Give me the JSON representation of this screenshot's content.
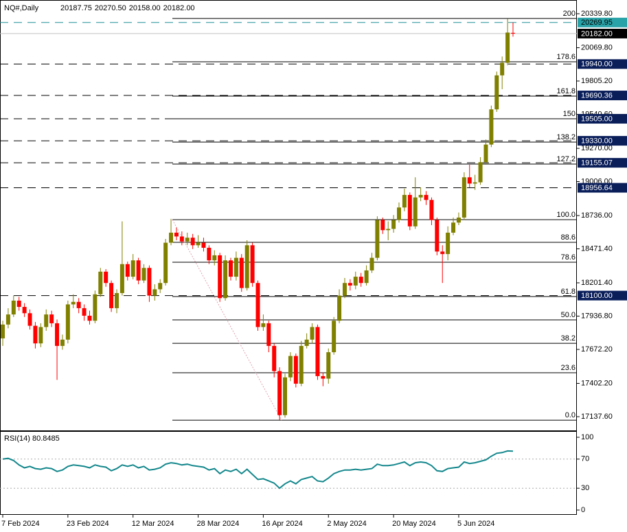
{
  "chart_data": [
    {
      "type": "candlestick",
      "symbol": "NQ#,Daily",
      "header_values": [
        "20187.75",
        "20270.50",
        "20158.00",
        "20182.00"
      ],
      "categories": [
        "7 Feb 2024",
        null,
        null,
        null,
        null,
        null,
        null,
        null,
        null,
        null,
        null,
        null,
        "23 Feb 2024",
        null,
        null,
        null,
        null,
        null,
        null,
        null,
        null,
        null,
        null,
        null,
        "12 Mar 2024",
        null,
        null,
        null,
        null,
        null,
        null,
        null,
        null,
        null,
        null,
        null,
        "28 Mar 2024",
        null,
        null,
        null,
        null,
        null,
        null,
        null,
        null,
        null,
        null,
        null,
        "16 Apr 2024",
        null,
        null,
        null,
        null,
        null,
        null,
        null,
        null,
        null,
        null,
        null,
        "2 May 2024",
        null,
        null,
        null,
        null,
        null,
        null,
        null,
        null,
        null,
        null,
        null,
        "20 May 2024",
        null,
        null,
        null,
        null,
        null,
        null,
        null,
        null,
        null,
        null,
        null,
        "5 Jun 2024",
        null,
        null,
        null,
        null,
        null,
        null,
        null,
        null,
        null,
        null
      ],
      "open": [
        17760,
        17870,
        17950,
        18060,
        18010,
        17960,
        17860,
        17720,
        17850,
        17950,
        17880,
        17700,
        17750,
        18030,
        18050,
        18000,
        17940,
        17900,
        18110,
        18290,
        18200,
        18000,
        18120,
        18350,
        18250,
        18380,
        18220,
        18320,
        18100,
        18150,
        18200,
        18520,
        18600,
        18570,
        18530,
        18560,
        18500,
        18520,
        18480,
        18380,
        18420,
        18080,
        18380,
        18250,
        18400,
        18160,
        18500,
        18200,
        17850,
        17880,
        17700,
        17500,
        17150,
        17450,
        17620,
        17400,
        17700,
        17750,
        17850,
        17460,
        17440,
        17650,
        17900,
        18100,
        18200,
        18180,
        18250,
        18200,
        18300,
        18400,
        18700,
        18620,
        18630,
        18700,
        18800,
        18900,
        18650,
        18880,
        18900,
        18860,
        18700,
        18450,
        18430,
        18600,
        18680,
        18720,
        19040,
        18990,
        19000,
        19160,
        19300,
        19580,
        19850,
        19950,
        20187.75
      ],
      "high": [
        17900,
        18000,
        18100,
        18090,
        18040,
        17990,
        17890,
        17880,
        17990,
        17980,
        17910,
        17790,
        18060,
        18110,
        18080,
        18030,
        17980,
        18140,
        18320,
        18310,
        18220,
        18150,
        18690,
        18370,
        18430,
        18400,
        18350,
        18340,
        18190,
        18230,
        18550,
        18710,
        18640,
        18610,
        18600,
        18590,
        18580,
        18560,
        18500,
        18460,
        18440,
        18420,
        18400,
        18450,
        18430,
        18540,
        18520,
        18220,
        17950,
        17900,
        17720,
        17530,
        17480,
        17650,
        17640,
        17740,
        17800,
        17880,
        17870,
        17490,
        17680,
        17930,
        18150,
        18240,
        18230,
        18290,
        18280,
        18340,
        18440,
        18730,
        18720,
        18690,
        18740,
        18840,
        18950,
        18920,
        19040,
        18960,
        18930,
        18880,
        18720,
        18500,
        18650,
        18720,
        18760,
        19080,
        19140,
        19060,
        19200,
        19340,
        19610,
        19880,
        20000,
        20300,
        20270.5
      ],
      "low": [
        17700,
        17840,
        17930,
        17980,
        17930,
        17830,
        17680,
        17690,
        17820,
        17850,
        17430,
        17670,
        17720,
        18000,
        17960,
        17900,
        17870,
        17880,
        18090,
        18170,
        17970,
        17960,
        18100,
        18220,
        18230,
        18190,
        18200,
        18050,
        18060,
        18120,
        18180,
        18500,
        18540,
        18500,
        18500,
        18470,
        18480,
        18450,
        18350,
        18340,
        18050,
        18060,
        18220,
        18220,
        18130,
        18140,
        18170,
        17820,
        17820,
        17650,
        17450,
        17112,
        17130,
        17420,
        17370,
        17380,
        17680,
        17720,
        17430,
        17380,
        17400,
        17630,
        17880,
        18080,
        18140,
        18150,
        18170,
        18180,
        18280,
        18380,
        18590,
        18540,
        18600,
        18680,
        18770,
        18620,
        18630,
        18850,
        18820,
        18660,
        18420,
        18200,
        18380,
        18580,
        18660,
        18700,
        18960,
        18940,
        18980,
        19140,
        19280,
        19560,
        19740,
        19930,
        20158
      ],
      "close": [
        17870,
        17950,
        18060,
        18010,
        17960,
        17860,
        17720,
        17850,
        17950,
        17880,
        17700,
        17750,
        18030,
        18050,
        18000,
        17940,
        17900,
        18110,
        18290,
        18200,
        18000,
        18120,
        18350,
        18250,
        18380,
        18220,
        18320,
        18100,
        18150,
        18200,
        18520,
        18600,
        18570,
        18530,
        18560,
        18500,
        18520,
        18480,
        18380,
        18420,
        18080,
        18380,
        18250,
        18400,
        18160,
        18500,
        18200,
        17850,
        17880,
        17700,
        17500,
        17150,
        17450,
        17620,
        17400,
        17700,
        17750,
        17850,
        17460,
        17440,
        17650,
        17900,
        18100,
        18200,
        18180,
        18250,
        18200,
        18300,
        18400,
        18700,
        18620,
        18630,
        18700,
        18800,
        18900,
        18650,
        18880,
        18900,
        18860,
        18700,
        18450,
        18430,
        18600,
        18680,
        18720,
        19040,
        18990,
        19000,
        19160,
        19300,
        19580,
        19850,
        19950,
        20190,
        20182
      ],
      "up_color": "#808000",
      "down_color": "#ff0000",
      "ylim": [
        17028.6,
        20448.9
      ],
      "yticks": [
        {
          "value": 20339.8,
          "label": "20339.80"
        },
        {
          "value": 20069.8,
          "label": "20069.80"
        },
        {
          "value": 19805.2,
          "label": "19805.20"
        },
        {
          "value": 19540.6,
          "label": "19540.60"
        },
        {
          "value": 19270,
          "label": "19270.00"
        },
        {
          "value": 19006,
          "label": "19006.00"
        },
        {
          "value": 18736,
          "label": "18736.00"
        },
        {
          "value": 18471.4,
          "label": "18471.40"
        },
        {
          "value": 18201.4,
          "label": "18201.40"
        },
        {
          "value": 17936.8,
          "label": "17936.80"
        },
        {
          "value": 17672.2,
          "label": "17672.20"
        },
        {
          "value": 17402.2,
          "label": "17402.20"
        },
        {
          "value": 17137.6,
          "label": "17137.60"
        }
      ],
      "levels": [
        {
          "value": 20269.95,
          "color": "#1f8f99",
          "dash": true,
          "box": "#2aa3a8",
          "text_color": "#000000"
        },
        {
          "value": 20182,
          "label": "20182.00",
          "color": "#c0c0c0",
          "dash": false,
          "box": "#000000",
          "text_color": "#ffffff"
        },
        {
          "value": 19940,
          "label": "19940.00",
          "color": "#000000",
          "dash": true,
          "box": "#0a1e5a",
          "text_color": "#ffffff"
        },
        {
          "value": 19690.36,
          "color": "#000000",
          "dash": true,
          "box": "#0a1e5a",
          "text_color": "#ffffff"
        },
        {
          "value": 19505,
          "label": "19505.00",
          "color": "#000000",
          "dash": true,
          "box": "#0a1e5a",
          "text_color": "#ffffff"
        },
        {
          "value": 19330,
          "label": "19330.00",
          "color": "#000000",
          "dash": true,
          "box": "#0a1e5a",
          "text_color": "#ffffff"
        },
        {
          "value": 19155.07,
          "color": "#000000",
          "dash": true,
          "box": "#0a1e5a",
          "text_color": "#ffffff"
        },
        {
          "value": 18956.64,
          "color": "#000000",
          "dash": true,
          "box": "#0a1e5a",
          "text_color": "#ffffff"
        },
        {
          "value": 18100,
          "label": "18100.00",
          "color": "#000000",
          "dash": true,
          "box": "#0a1e5a",
          "text_color": "#ffffff"
        }
      ],
      "fibonacci": [
        {
          "label": "200",
          "price": 20302
        },
        {
          "label": "178.6",
          "price": 19958
        },
        {
          "label": "161.8",
          "price": 19685
        },
        {
          "label": "150",
          "price": 19505
        },
        {
          "label": "138.2",
          "price": 19320
        },
        {
          "label": "127.2",
          "price": 19145
        },
        {
          "label": "100.0",
          "price": 18703
        },
        {
          "label": "88.6",
          "price": 18523
        },
        {
          "label": "78.6",
          "price": 18365
        },
        {
          "label": "61.8",
          "price": 18092
        },
        {
          "label": "50.0",
          "price": 17907
        },
        {
          "label": "38.2",
          "price": 17721
        },
        {
          "label": "23.6",
          "price": 17487
        },
        {
          "label": "0.0",
          "price": 17110
        }
      ],
      "fib_color": "#000000",
      "fib_trend_color": "#e0a0b0"
    },
    {
      "type": "line",
      "title": "RSI(14) 80.8485",
      "values": [
        70,
        71,
        68,
        62,
        58,
        60,
        57,
        56,
        58,
        57,
        53,
        55,
        60,
        62,
        61,
        60,
        58,
        62,
        60,
        59,
        54,
        57,
        62,
        60,
        62,
        58,
        60,
        55,
        56,
        58,
        63,
        65,
        64,
        62,
        63,
        61,
        60,
        59,
        55,
        57,
        50,
        55,
        53,
        56,
        50,
        56,
        49,
        42,
        43,
        40,
        37,
        30,
        36,
        40,
        36,
        42,
        44,
        46,
        40,
        39,
        44,
        50,
        53,
        55,
        55,
        56,
        55,
        56,
        57,
        63,
        61,
        61,
        62,
        64,
        66,
        61,
        65,
        66,
        65,
        61,
        54,
        53,
        57,
        58,
        59,
        66,
        64,
        65,
        67,
        69,
        74,
        78,
        79,
        81.2,
        80.8485
      ],
      "color": "#13878c",
      "ylim": [
        0,
        100
      ],
      "yticks": [
        100,
        70,
        30,
        0
      ],
      "grid_ticks": [
        70,
        30
      ]
    }
  ]
}
